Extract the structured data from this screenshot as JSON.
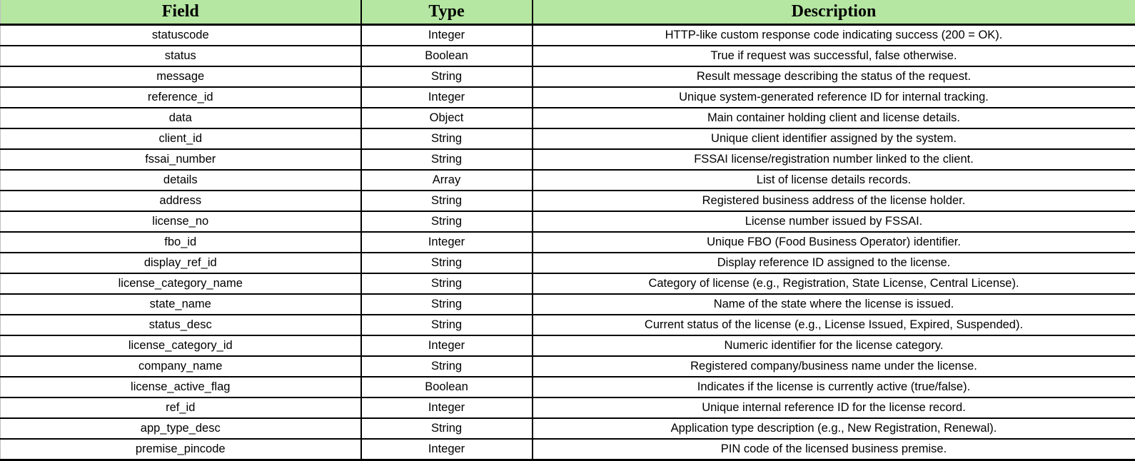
{
  "colors": {
    "header_bg": "#b5e6a2",
    "border": "#000000",
    "text": "#000000"
  },
  "table": {
    "columns": [
      "Field",
      "Type",
      "Description"
    ],
    "rows": [
      {
        "field": "statuscode",
        "type": "Integer",
        "description": "HTTP-like custom response code indicating success (200 = OK)."
      },
      {
        "field": "status",
        "type": "Boolean",
        "description": "True if request was successful, false otherwise."
      },
      {
        "field": "message",
        "type": "String",
        "description": "Result message describing the status of the request."
      },
      {
        "field": "reference_id",
        "type": "Integer",
        "description": "Unique system-generated reference ID for internal tracking."
      },
      {
        "field": "data",
        "type": "Object",
        "description": "Main container holding client and license details."
      },
      {
        "field": "client_id",
        "type": "String",
        "description": "Unique client identifier assigned by the system."
      },
      {
        "field": "fssai_number",
        "type": "String",
        "description": "FSSAI license/registration number linked to the client."
      },
      {
        "field": "details",
        "type": "Array",
        "description": "List of license details records."
      },
      {
        "field": "address",
        "type": "String",
        "description": "Registered business address of the license holder."
      },
      {
        "field": "license_no",
        "type": "String",
        "description": "License number issued by FSSAI."
      },
      {
        "field": "fbo_id",
        "type": "Integer",
        "description": "Unique FBO (Food Business Operator) identifier."
      },
      {
        "field": "display_ref_id",
        "type": "String",
        "description": "Display reference ID assigned to the license."
      },
      {
        "field": "license_category_name",
        "type": "String",
        "description": "Category of license (e.g., Registration, State License, Central License)."
      },
      {
        "field": "state_name",
        "type": "String",
        "description": "Name of the state where the license is issued."
      },
      {
        "field": "status_desc",
        "type": "String",
        "description": "Current status of the license (e.g., License Issued, Expired, Suspended)."
      },
      {
        "field": "license_category_id",
        "type": "Integer",
        "description": "Numeric identifier for the license category."
      },
      {
        "field": "company_name",
        "type": "String",
        "description": "Registered company/business name under the license."
      },
      {
        "field": "license_active_flag",
        "type": "Boolean",
        "description": "Indicates if the license is currently active (true/false)."
      },
      {
        "field": "ref_id",
        "type": "Integer",
        "description": "Unique internal reference ID for the license record."
      },
      {
        "field": "app_type_desc",
        "type": "String",
        "description": "Application type description (e.g., New Registration, Renewal)."
      },
      {
        "field": "premise_pincode",
        "type": "Integer",
        "description": "PIN code of the licensed business premise."
      }
    ]
  }
}
